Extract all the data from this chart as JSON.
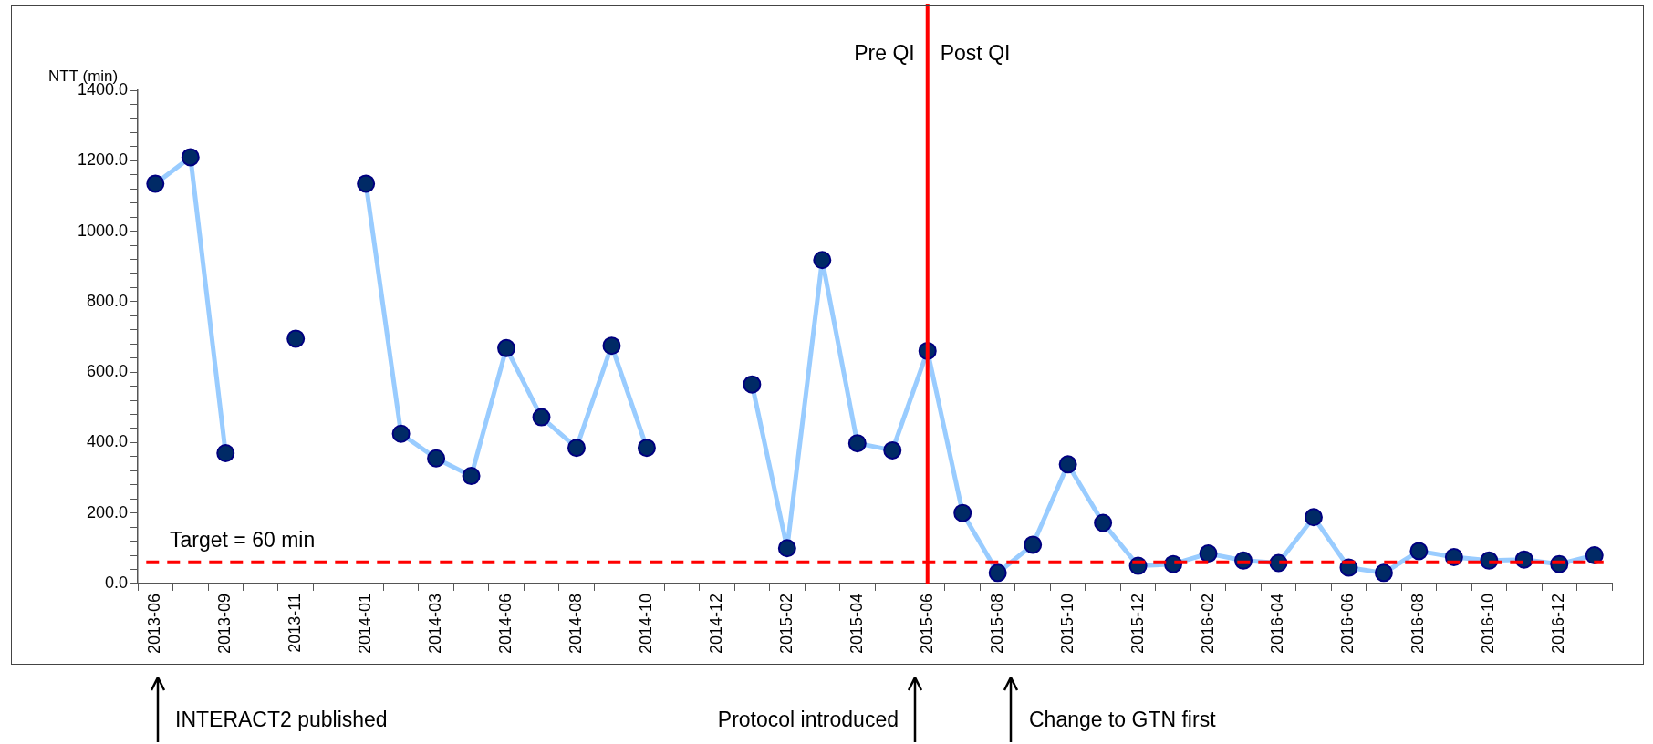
{
  "chart_data": {
    "type": "line",
    "ylabel": "NTT (min)",
    "categories": [
      "2013-06",
      null,
      "2013-09",
      null,
      "2013-11",
      null,
      "2014-01",
      null,
      "2014-03",
      null,
      "2014-06",
      null,
      "2014-08",
      null,
      "2014-10",
      null,
      "2014-12",
      null,
      "2015-02",
      null,
      "2015-04",
      null,
      "2015-06",
      null,
      "2015-08",
      null,
      "2015-10",
      null,
      "2015-12",
      null,
      "2016-02",
      null,
      "2016-04",
      null,
      "2016-06",
      null,
      "2016-08",
      null,
      "2016-10",
      null,
      "2016-12",
      null
    ],
    "series": [
      {
        "color": "#99ccff",
        "colors": [
          "#002a66",
          "#002a66",
          "#002a66",
          "#002a66",
          "#002a66",
          "#002a66",
          "#002a66",
          "#002a66",
          "#002a66",
          "#002a66",
          "#002a66",
          "#002a66",
          "#002a66",
          "#002a66",
          "#002a66",
          "#002a66",
          "#002a66",
          "#002a66",
          "#002a66",
          "#002a66",
          "#002a66",
          "#002a66",
          "#002a66",
          "#002a66",
          "#002a66",
          "#002a66",
          "#002a66",
          "#002a66",
          "#002a66",
          "#002a66",
          "#002a66",
          "#002a66",
          "#002a66",
          "#002a66",
          "#002a66",
          "#002a66",
          "#002a66",
          "#002a66",
          "#002a66",
          "#002a66",
          "#002a66",
          "#002a66"
        ],
        "values": [
          1135,
          1210,
          370,
          null,
          695,
          null,
          1135,
          425,
          355,
          305,
          668,
          472,
          385,
          675,
          385,
          null,
          null,
          565,
          100,
          918,
          398,
          378,
          660,
          200,
          30,
          110,
          338,
          172,
          50,
          55,
          85,
          65,
          58,
          188,
          45,
          30,
          92,
          75,
          65,
          68,
          55,
          80
        ]
      }
    ],
    "ylim": [
      0,
      1400
    ],
    "yticks": [
      {
        "value": 0,
        "label": "0.0"
      },
      {
        "value": 40,
        "label": null
      },
      {
        "value": 80,
        "label": null
      },
      {
        "value": 120,
        "label": null
      },
      {
        "value": 160,
        "label": null
      },
      {
        "value": 200,
        "label": "200.0"
      },
      {
        "value": 240,
        "label": null
      },
      {
        "value": 280,
        "label": null
      },
      {
        "value": 320,
        "label": null
      },
      {
        "value": 360,
        "label": null
      },
      {
        "value": 400,
        "label": "400.0"
      },
      {
        "value": 440,
        "label": null
      },
      {
        "value": 480,
        "label": null
      },
      {
        "value": 520,
        "label": null
      },
      {
        "value": 560,
        "label": null
      },
      {
        "value": 600,
        "label": "600.0"
      },
      {
        "value": 640,
        "label": null
      },
      {
        "value": 680,
        "label": null
      },
      {
        "value": 720,
        "label": null
      },
      {
        "value": 760,
        "label": null
      },
      {
        "value": 800,
        "label": "800.0"
      },
      {
        "value": 840,
        "label": null
      },
      {
        "value": 880,
        "label": null
      },
      {
        "value": 920,
        "label": null
      },
      {
        "value": 960,
        "label": null
      },
      {
        "value": 1000,
        "label": "1000.0"
      },
      {
        "value": 1040,
        "label": null
      },
      {
        "value": 1080,
        "label": null
      },
      {
        "value": 1120,
        "label": null
      },
      {
        "value": 1160,
        "label": null
      },
      {
        "value": 1200,
        "label": "1200.0"
      },
      {
        "value": 1240,
        "label": null
      },
      {
        "value": 1280,
        "label": null
      },
      {
        "value": 1320,
        "label": null
      },
      {
        "value": 1360,
        "label": null
      },
      {
        "value": 1400,
        "label": "1400.0"
      }
    ],
    "ref_lines": [
      {
        "axis": "y",
        "value": 60,
        "label": "Target = 60 min",
        "color": "#ff0000",
        "line_style": "dashed"
      },
      {
        "axis": "x",
        "value": "2015-06",
        "color": "#ff0000",
        "line_style": "solid"
      }
    ],
    "annotations": [
      {
        "text": "Pre QI",
        "x": "2015-06",
        "y": 1400
      },
      {
        "text": "Post QI",
        "x": "2015-06",
        "y": 1400
      },
      "INTERACT2 published",
      "Protocol introduced",
      "Change to GTN first"
    ],
    "grid": false,
    "legend": false,
    "marker": "circle",
    "line_style": "solid"
  }
}
